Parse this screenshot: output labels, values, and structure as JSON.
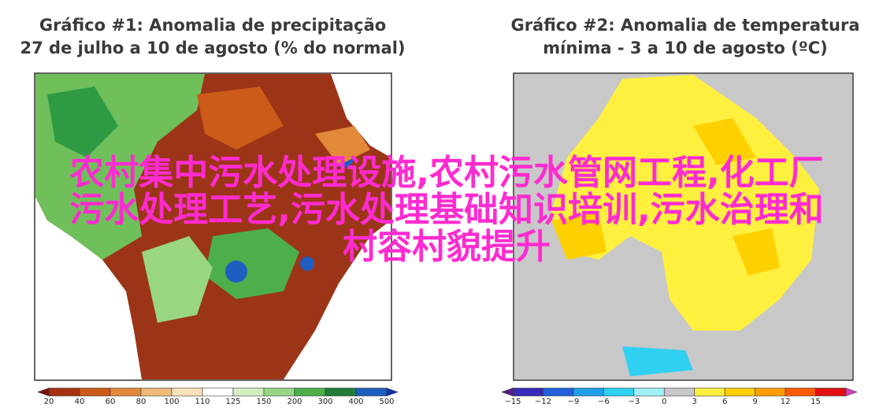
{
  "panels": [
    {
      "title_lines": [
        "Gráfico #1: Anomalia de precipitação",
        "27 de julho a 10 de agosto (% do normal)"
      ],
      "colorbar": {
        "ticks": [
          "20",
          "40",
          "60",
          "80",
          "100",
          "110",
          "125",
          "150",
          "200",
          "300",
          "400",
          "500"
        ],
        "colors": [
          "#7a1408",
          "#a8300f",
          "#cc5a18",
          "#e38a3a",
          "#f0bb78",
          "#f8e2b8",
          "#ffffff",
          "#d2efc0",
          "#98d684",
          "#4caf4a",
          "#1f7d3a",
          "#1e5ec0",
          "#1030b0"
        ]
      }
    },
    {
      "title_lines": [
        "Gráfico #2: Anomalia de temperatura",
        "mínima - 3 a 10 de agosto (ºC)"
      ],
      "colorbar": {
        "ticks": [
          "−15",
          "−12",
          "−9",
          "−6",
          "−3",
          "0",
          "3",
          "6",
          "9",
          "12",
          "15"
        ],
        "colors": [
          "#5a1a8c",
          "#3a2ab8",
          "#2060d8",
          "#1ea0e8",
          "#30d0f0",
          "#a0f0f8",
          "#c8c8c8",
          "#fff040",
          "#ffd000",
          "#ff9d00",
          "#ff5a00",
          "#e01010",
          "#d040c0"
        ]
      }
    }
  ],
  "overlay_lines": [
    "农村集中污水处理设施,农村污水管网工程,化工厂",
    "污水处理工艺,污水处理基础知识培训,污水治理和",
    "村容村貌提升"
  ]
}
